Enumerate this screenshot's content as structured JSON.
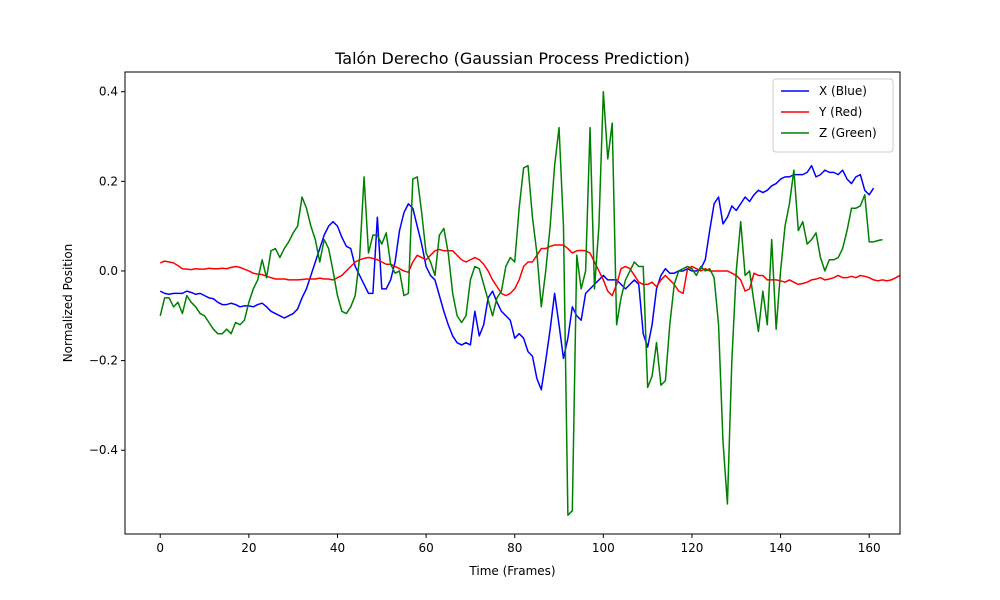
{
  "chart_data": {
    "type": "line",
    "title": "Talón Derecho (Gaussian Process Prediction)",
    "xlabel": "Time (Frames)",
    "ylabel": "Normalized Position",
    "xlim": [
      -7.95,
      166.95
    ],
    "ylim": [
      -0.587,
      0.444
    ],
    "xticks": [
      0,
      20,
      40,
      60,
      80,
      100,
      120,
      140,
      160
    ],
    "yticks": [
      -0.4,
      -0.2,
      0.0,
      0.2,
      0.4
    ],
    "xtick_labels": [
      "0",
      "20",
      "40",
      "60",
      "80",
      "100",
      "120",
      "140",
      "160"
    ],
    "ytick_labels": [
      "−0.4",
      "−0.2",
      "0.0",
      "0.2",
      "0.4"
    ],
    "grid": false,
    "legend_position": "top-right",
    "series": [
      {
        "name": "X (Blue)",
        "color": "#0000ff",
        "values": [
          -0.045,
          -0.05,
          -0.052,
          -0.05,
          -0.05,
          -0.05,
          -0.045,
          -0.048,
          -0.052,
          -0.05,
          -0.055,
          -0.06,
          -0.062,
          -0.07,
          -0.075,
          -0.075,
          -0.072,
          -0.075,
          -0.08,
          -0.078,
          -0.078,
          -0.08,
          -0.075,
          -0.072,
          -0.08,
          -0.09,
          -0.095,
          -0.1,
          -0.105,
          -0.1,
          -0.095,
          -0.085,
          -0.06,
          -0.04,
          -0.01,
          0.02,
          0.05,
          0.08,
          0.1,
          0.11,
          0.1,
          0.075,
          0.055,
          0.05,
          0.01,
          -0.01,
          -0.03,
          -0.05,
          -0.05,
          0.12,
          -0.04,
          -0.04,
          -0.02,
          0.02,
          0.09,
          0.13,
          0.15,
          0.14,
          0.1,
          0.06,
          0.01,
          -0.01,
          -0.02,
          -0.055,
          -0.09,
          -0.12,
          -0.145,
          -0.16,
          -0.165,
          -0.16,
          -0.165,
          -0.09,
          -0.145,
          -0.12,
          -0.06,
          -0.045,
          -0.07,
          -0.09,
          -0.1,
          -0.11,
          -0.15,
          -0.14,
          -0.15,
          -0.18,
          -0.19,
          -0.24,
          -0.265,
          -0.2,
          -0.13,
          -0.05,
          -0.12,
          -0.195,
          -0.15,
          -0.08,
          -0.1,
          -0.11,
          -0.05,
          -0.04,
          -0.03,
          -0.02,
          -0.01,
          -0.02,
          -0.02,
          -0.02,
          -0.03,
          -0.04,
          -0.03,
          -0.02,
          -0.03,
          -0.14,
          -0.17,
          -0.12,
          -0.04,
          -0.01,
          0.005,
          -0.005,
          -0.005,
          0.0,
          0.0,
          0.005,
          0.0,
          0.0,
          0.005,
          0.025,
          0.09,
          0.15,
          0.165,
          0.105,
          0.12,
          0.145,
          0.135,
          0.15,
          0.165,
          0.155,
          0.17,
          0.18,
          0.175,
          0.18,
          0.19,
          0.195,
          0.205,
          0.21,
          0.21,
          0.215,
          0.215,
          0.215,
          0.22,
          0.235,
          0.21,
          0.215,
          0.225,
          0.22,
          0.22,
          0.215,
          0.225,
          0.205,
          0.195,
          0.21,
          0.215,
          0.18,
          0.17,
          0.185
        ]
      },
      {
        "name": "Y (Red)",
        "color": "#ff0000",
        "values": [
          0.018,
          0.022,
          0.02,
          0.018,
          0.012,
          0.005,
          0.004,
          0.003,
          0.005,
          0.004,
          0.004,
          0.006,
          0.005,
          0.005,
          0.006,
          0.005,
          0.008,
          0.01,
          0.008,
          0.004,
          0.0,
          -0.005,
          -0.007,
          -0.008,
          -0.012,
          -0.015,
          -0.018,
          -0.018,
          -0.018,
          -0.02,
          -0.02,
          -0.02,
          -0.019,
          -0.018,
          -0.018,
          -0.018,
          -0.016,
          -0.018,
          -0.018,
          -0.02,
          -0.015,
          -0.01,
          0.0,
          0.01,
          0.02,
          0.025,
          0.028,
          0.03,
          0.028,
          0.025,
          0.02,
          0.015,
          0.015,
          0.01,
          0.005,
          0.0,
          -0.003,
          0.02,
          0.035,
          0.03,
          0.025,
          0.035,
          0.045,
          0.048,
          0.045,
          0.045,
          0.045,
          0.035,
          0.025,
          0.02,
          0.025,
          0.03,
          0.025,
          0.015,
          0.0,
          -0.02,
          -0.035,
          -0.05,
          -0.055,
          -0.05,
          -0.04,
          -0.02,
          0.01,
          0.02,
          0.02,
          0.035,
          0.05,
          0.05,
          0.055,
          0.058,
          0.058,
          0.058,
          0.05,
          0.04,
          0.045,
          0.046,
          0.045,
          0.04,
          0.02,
          0.0,
          -0.02,
          -0.045,
          -0.055,
          -0.03,
          0.005,
          0.01,
          0.005,
          -0.01,
          -0.025,
          -0.03,
          -0.03,
          -0.025,
          -0.035,
          -0.02,
          -0.01,
          -0.02,
          -0.03,
          -0.045,
          -0.05,
          0.005,
          0.01,
          0.005,
          0.0,
          0.005,
          0.0,
          0.0,
          0.0,
          0.0,
          0.0,
          -0.005,
          -0.01,
          -0.02,
          -0.045,
          -0.04,
          -0.005,
          -0.01,
          -0.01,
          -0.02,
          -0.02,
          -0.02,
          -0.022,
          -0.025,
          -0.02,
          -0.025,
          -0.03,
          -0.028,
          -0.025,
          -0.02,
          -0.018,
          -0.015,
          -0.02,
          -0.018,
          -0.015,
          -0.01,
          -0.015,
          -0.015,
          -0.012,
          -0.015,
          -0.01,
          -0.012,
          -0.015,
          -0.02,
          -0.022,
          -0.02,
          -0.022,
          -0.02,
          -0.015,
          -0.01
        ]
      },
      {
        "name": "Z (Green)",
        "color": "#008000",
        "values": [
          -0.1,
          -0.06,
          -0.06,
          -0.08,
          -0.07,
          -0.095,
          -0.055,
          -0.07,
          -0.08,
          -0.095,
          -0.1,
          -0.115,
          -0.13,
          -0.14,
          -0.14,
          -0.13,
          -0.14,
          -0.115,
          -0.12,
          -0.11,
          -0.07,
          -0.04,
          -0.02,
          0.025,
          -0.015,
          0.045,
          0.05,
          0.03,
          0.05,
          0.065,
          0.085,
          0.1,
          0.165,
          0.14,
          0.1,
          0.07,
          0.02,
          0.07,
          0.05,
          0.0,
          -0.055,
          -0.09,
          -0.095,
          -0.08,
          -0.055,
          0.03,
          0.21,
          0.04,
          0.08,
          0.08,
          0.06,
          0.085,
          0.015,
          -0.005,
          0.0,
          -0.055,
          -0.05,
          0.205,
          0.21,
          0.13,
          0.04,
          0.02,
          -0.01,
          0.08,
          0.095,
          0.04,
          -0.05,
          -0.1,
          -0.115,
          -0.1,
          -0.02,
          0.01,
          0.005,
          -0.03,
          -0.065,
          -0.1,
          -0.06,
          -0.045,
          0.01,
          0.03,
          0.02,
          0.14,
          0.23,
          0.235,
          0.12,
          0.04,
          -0.08,
          0.0,
          0.1,
          0.235,
          0.32,
          0.1,
          -0.545,
          -0.535,
          0.035,
          -0.04,
          0.0,
          0.32,
          -0.04,
          0.1,
          0.4,
          0.25,
          0.33,
          -0.12,
          -0.06,
          -0.02,
          0.0,
          0.02,
          0.01,
          0.01,
          -0.26,
          -0.235,
          -0.16,
          -0.255,
          -0.245,
          -0.12,
          -0.03,
          0.0,
          0.005,
          0.01,
          0.005,
          -0.01,
          0.01,
          0.0,
          0.005,
          -0.015,
          -0.12,
          -0.38,
          -0.52,
          -0.2,
          0.0,
          0.11,
          -0.01,
          0.0,
          -0.07,
          -0.135,
          -0.045,
          -0.12,
          0.07,
          -0.13,
          0.0,
          0.1,
          0.15,
          0.225,
          0.09,
          0.11,
          0.06,
          0.07,
          0.085,
          0.03,
          0.0,
          0.025,
          0.025,
          0.03,
          0.05,
          0.09,
          0.14,
          0.14,
          0.145,
          0.17,
          0.065,
          0.065,
          0.068,
          0.07
        ]
      }
    ]
  }
}
